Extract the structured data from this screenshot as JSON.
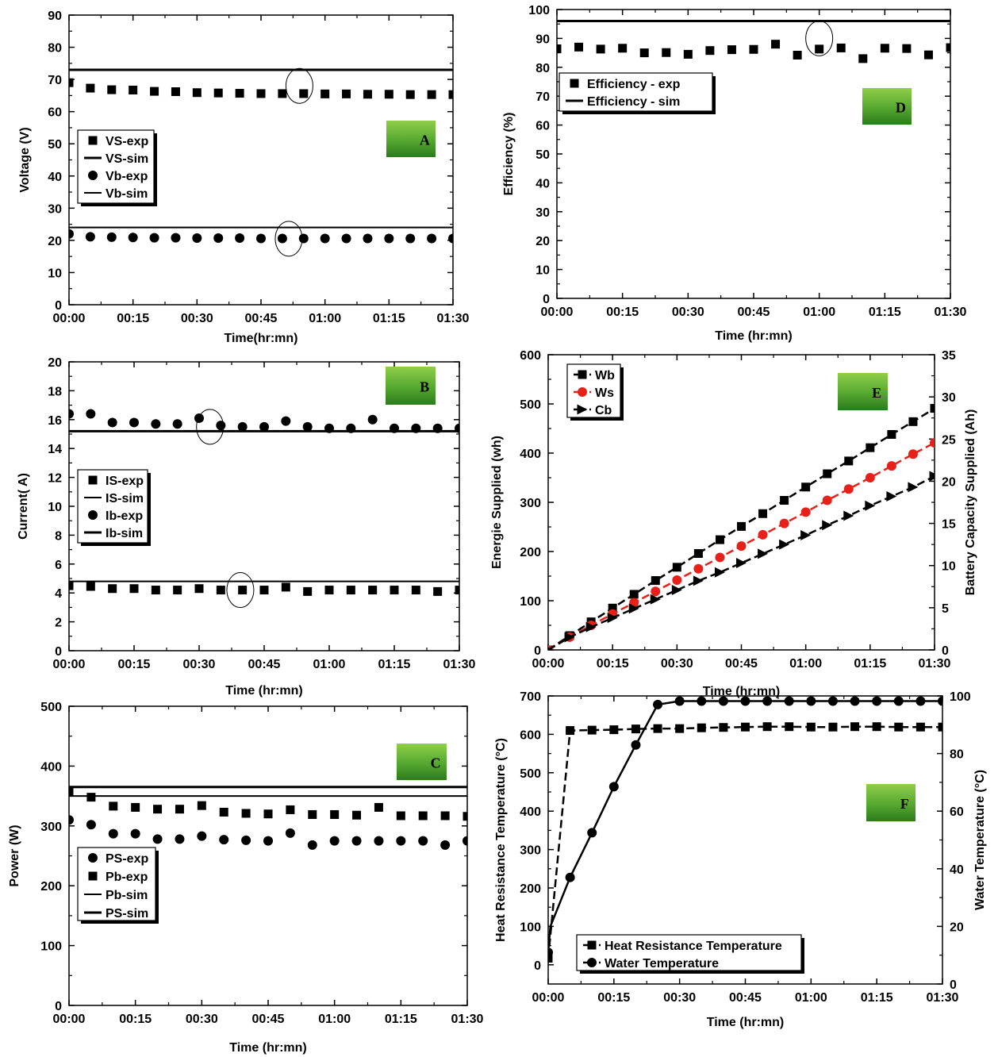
{
  "chart_data": [
    {
      "panel": "A",
      "type": "scatter",
      "xlabel": "Time(hr:mn)",
      "ylabel": "Voltage  (V)",
      "xlim": [
        0,
        90
      ],
      "ylim": [
        0,
        90
      ],
      "xticks": [
        0,
        15,
        30,
        45,
        60,
        75,
        90
      ],
      "xticklabels": [
        "00:00",
        "00:15",
        "00:30",
        "00:45",
        "01:00",
        "01:15",
        "01:30"
      ],
      "yticks": [
        0,
        10,
        20,
        30,
        40,
        50,
        60,
        70,
        80,
        90
      ],
      "legend_position": "center-left",
      "badge": "A",
      "series": [
        {
          "name": "VS-exp",
          "kind": "scatter",
          "marker": "square",
          "x": [
            0,
            5,
            10,
            15,
            20,
            25,
            30,
            35,
            40,
            45,
            50,
            55,
            60,
            65,
            70,
            75,
            80,
            85,
            90
          ],
          "values": [
            69,
            67.3,
            66.8,
            66.7,
            66.3,
            66.2,
            65.9,
            65.8,
            65.7,
            65.6,
            65.6,
            65.6,
            65.5,
            65.5,
            65.4,
            65.4,
            65.3,
            65.3,
            65.3
          ]
        },
        {
          "name": "VS-sim",
          "kind": "hline",
          "value": 73,
          "weight": "thick"
        },
        {
          "name": "Vb-exp",
          "kind": "scatter",
          "marker": "circle",
          "x": [
            0,
            5,
            10,
            15,
            20,
            25,
            30,
            35,
            40,
            45,
            50,
            55,
            60,
            65,
            70,
            75,
            80,
            85,
            90
          ],
          "values": [
            22,
            21.1,
            21,
            20.9,
            20.8,
            20.8,
            20.7,
            20.7,
            20.7,
            20.6,
            20.6,
            20.6,
            20.6,
            20.6,
            20.6,
            20.6,
            20.6,
            20.6,
            20.6
          ]
        },
        {
          "name": "Vb-sim",
          "kind": "hline",
          "value": 24,
          "weight": "thin"
        }
      ],
      "annotations": [
        {
          "shape": "ellipse",
          "x": 54,
          "y": 68
        },
        {
          "shape": "ellipse",
          "x": 51.5,
          "y": 20.5
        }
      ]
    },
    {
      "panel": "B",
      "type": "scatter",
      "xlabel": "Time (hr:mn)",
      "ylabel": "Current( A)",
      "xlim": [
        0,
        90
      ],
      "ylim": [
        0,
        20
      ],
      "xticks": [
        0,
        15,
        30,
        45,
        60,
        75,
        90
      ],
      "xticklabels": [
        "00:00",
        "00:15",
        "00:30",
        "00:45",
        "01:00",
        "01:15",
        "01:30"
      ],
      "yticks": [
        0,
        2,
        4,
        6,
        8,
        10,
        12,
        14,
        16,
        18,
        20
      ],
      "legend_position": "center-left",
      "badge": "B",
      "series": [
        {
          "name": "IS-exp",
          "kind": "scatter",
          "marker": "square",
          "x": [
            0,
            5,
            10,
            15,
            20,
            25,
            30,
            35,
            40,
            45,
            50,
            55,
            60,
            65,
            70,
            75,
            80,
            85,
            90
          ],
          "values": [
            4.5,
            4.45,
            4.3,
            4.3,
            4.2,
            4.2,
            4.3,
            4.2,
            4.2,
            4.2,
            4.4,
            4.1,
            4.2,
            4.2,
            4.2,
            4.2,
            4.2,
            4.1,
            4.2
          ]
        },
        {
          "name": "IS-sim",
          "kind": "hline",
          "value": 4.8,
          "weight": "thin"
        },
        {
          "name": "Ib-exp",
          "kind": "scatter",
          "marker": "circle",
          "x": [
            0,
            5,
            10,
            15,
            20,
            25,
            30,
            35,
            40,
            45,
            50,
            55,
            60,
            65,
            70,
            75,
            80,
            85,
            90
          ],
          "values": [
            16.4,
            16.4,
            15.8,
            15.8,
            15.7,
            15.7,
            16.1,
            15.6,
            15.5,
            15.5,
            15.9,
            15.5,
            15.4,
            15.4,
            16,
            15.4,
            15.4,
            15.4,
            15.4
          ]
        },
        {
          "name": "Ib-sim",
          "kind": "hline",
          "value": 15.2,
          "weight": "thick"
        }
      ],
      "annotations": [
        {
          "shape": "ellipse",
          "x": 32.5,
          "y": 15.5
        },
        {
          "shape": "ellipse",
          "x": 39.5,
          "y": 4.2
        }
      ]
    },
    {
      "panel": "C",
      "type": "scatter",
      "xlabel": "Time (hr:mn)",
      "ylabel": "Power (W)",
      "xlim": [
        0,
        90
      ],
      "ylim": [
        0,
        500
      ],
      "xticks": [
        0,
        15,
        30,
        45,
        60,
        75,
        90
      ],
      "xticklabels": [
        "00:00",
        "00:15",
        "00:30",
        "00:45",
        "01:00",
        "01:15",
        "01:30"
      ],
      "yticks": [
        0,
        100,
        200,
        300,
        400,
        500
      ],
      "legend_position": "center-left",
      "badge": "C",
      "series": [
        {
          "name": "PS-exp",
          "kind": "scatter",
          "marker": "circle",
          "x": [
            0,
            5,
            10,
            15,
            20,
            25,
            30,
            35,
            40,
            45,
            50,
            55,
            60,
            65,
            70,
            75,
            80,
            85,
            90
          ],
          "values": [
            310,
            302,
            287,
            287,
            278,
            278,
            283,
            277,
            276,
            275,
            288,
            268,
            275,
            275,
            275,
            275,
            275,
            268,
            275
          ]
        },
        {
          "name": "Pb-exp",
          "kind": "scatter",
          "marker": "square",
          "x": [
            0,
            5,
            10,
            15,
            20,
            25,
            30,
            35,
            40,
            45,
            50,
            55,
            60,
            65,
            70,
            75,
            80,
            85,
            90
          ],
          "values": [
            358,
            348,
            333,
            331,
            328,
            328,
            334,
            323,
            321,
            320,
            327,
            319,
            319,
            318,
            331,
            317,
            317,
            317,
            316
          ]
        },
        {
          "name": "Pb-sim",
          "kind": "hline",
          "value": 350,
          "weight": "thin"
        },
        {
          "name": "PS-sim",
          "kind": "hline",
          "value": 365,
          "weight": "thick"
        }
      ],
      "annotations": []
    },
    {
      "panel": "D",
      "type": "scatter",
      "xlabel": "Time (hr:mn)",
      "ylabel": "Efficiency (%)",
      "xlim": [
        0,
        90
      ],
      "ylim": [
        0,
        100
      ],
      "xticks": [
        0,
        15,
        30,
        45,
        60,
        75,
        90
      ],
      "xticklabels": [
        "00:00",
        "00:15",
        "00:30",
        "00:45",
        "01:00",
        "01:15",
        "01:30"
      ],
      "yticks": [
        0,
        10,
        20,
        30,
        40,
        50,
        60,
        70,
        80,
        90,
        100
      ],
      "legend_position": "top-left",
      "badge": "D",
      "series": [
        {
          "name": "Efficiency - exp",
          "kind": "scatter",
          "marker": "square",
          "x": [
            0,
            5,
            10,
            15,
            20,
            25,
            30,
            35,
            40,
            45,
            50,
            55,
            60,
            65,
            70,
            75,
            80,
            85,
            90
          ],
          "values": [
            86.4,
            87,
            86.3,
            86.6,
            85,
            85.1,
            84.5,
            85.8,
            86.1,
            86.2,
            88,
            84.2,
            86.3,
            86.7,
            83,
            86.6,
            86.5,
            84.3,
            86.8
          ]
        },
        {
          "name": "Efficiency - sim",
          "kind": "hline",
          "value": 96,
          "weight": "thick"
        }
      ],
      "annotations": [
        {
          "shape": "ellipse",
          "x": 60,
          "y": 90
        }
      ]
    },
    {
      "panel": "E",
      "type": "line",
      "xlabel": "Time (hr:mn)",
      "ylabel": "Energie Supplied (wh)",
      "y2label": "Battery Capacity Supplied (Ah)",
      "xlim": [
        0,
        90
      ],
      "ylim": [
        0,
        600
      ],
      "y2lim": [
        0,
        35
      ],
      "xticks": [
        0,
        15,
        30,
        45,
        60,
        75,
        90
      ],
      "xticklabels": [
        "00:00",
        "00:15",
        "00:30",
        "00:45",
        "01:00",
        "01:15",
        "01:30"
      ],
      "yticks": [
        0,
        100,
        200,
        300,
        400,
        500,
        600
      ],
      "y2ticks": [
        0,
        5,
        10,
        15,
        20,
        25,
        30,
        35
      ],
      "legend_position": "top-left",
      "badge": "E",
      "series": [
        {
          "name": "Wb",
          "kind": "line",
          "marker": "square",
          "color": "#000000",
          "axis": "left",
          "x": [
            0,
            5,
            10,
            15,
            20,
            25,
            30,
            35,
            40,
            45,
            50,
            55,
            60,
            65,
            70,
            75,
            80,
            85,
            90
          ],
          "values": [
            0,
            29,
            57,
            85,
            113,
            141,
            168,
            196,
            224,
            251,
            277,
            304,
            331,
            358,
            384,
            411,
            438,
            464,
            491
          ]
        },
        {
          "name": "Ws",
          "kind": "line",
          "marker": "circle",
          "color": "#e8201a",
          "axis": "left",
          "x": [
            0,
            5,
            10,
            15,
            20,
            25,
            30,
            35,
            40,
            45,
            50,
            55,
            60,
            65,
            70,
            75,
            80,
            85,
            90
          ],
          "values": [
            0,
            26,
            50,
            73,
            96,
            119,
            142,
            165,
            188,
            211,
            234,
            257,
            280,
            304,
            327,
            350,
            374,
            398,
            421
          ]
        },
        {
          "name": "Cb",
          "kind": "line",
          "marker": "triangle",
          "color": "#000000",
          "axis": "right",
          "x": [
            0,
            5,
            10,
            15,
            20,
            25,
            30,
            35,
            40,
            45,
            50,
            55,
            60,
            65,
            70,
            75,
            80,
            85,
            90
          ],
          "values": [
            0,
            1.5,
            2.7,
            3.8,
            4.9,
            6.0,
            7.1,
            8.2,
            9.2,
            10.3,
            11.4,
            12.5,
            13.6,
            14.8,
            15.9,
            17.1,
            18.2,
            19.3,
            20.6
          ]
        }
      ],
      "annotations": []
    },
    {
      "panel": "F",
      "type": "line",
      "xlabel": "Time (hr:mn)",
      "ylabel": "Heat Resistance Temperature (°C)",
      "y2label": "Water Temperature (°C)",
      "xlim": [
        0,
        90
      ],
      "ylim": [
        -50,
        700
      ],
      "y2lim": [
        0,
        100
      ],
      "xticks": [
        0,
        15,
        30,
        45,
        60,
        75,
        90
      ],
      "xticklabels": [
        "00:00",
        "00:15",
        "00:30",
        "00:45",
        "01:00",
        "01:15",
        "01:30"
      ],
      "yticks": [
        0,
        100,
        200,
        300,
        400,
        500,
        600,
        700
      ],
      "y2ticks": [
        0,
        20,
        40,
        60,
        80,
        100
      ],
      "legend_position": "bottom-center",
      "badge": "F",
      "series": [
        {
          "name": "Heat Resistance Temperature",
          "kind": "line",
          "marker": "square",
          "color": "#000000",
          "axis": "left",
          "x": [
            0,
            5,
            10,
            15,
            20,
            25,
            30,
            35,
            40,
            45,
            50,
            55,
            60,
            65,
            70,
            75,
            80,
            85,
            90
          ],
          "values": [
            17,
            610,
            611,
            612,
            614,
            615,
            615,
            617,
            618,
            619,
            620,
            620,
            619,
            619,
            620,
            620,
            619,
            619,
            619
          ]
        },
        {
          "name": "Water Temperature",
          "kind": "line",
          "marker": "circle",
          "color": "#000000",
          "axis": "right",
          "x": [
            0,
            0.5,
            5,
            10,
            15,
            20,
            25,
            30,
            35,
            40,
            45,
            50,
            55,
            60,
            65,
            70,
            75,
            80,
            85,
            90
          ],
          "values": [
            11,
            20,
            37,
            52.5,
            68.5,
            83,
            97,
            98.2,
            98.2,
            98.2,
            98.2,
            98.2,
            98.2,
            98.2,
            98.2,
            98.2,
            98.2,
            98.2,
            98.2,
            98.2
          ]
        }
      ],
      "annotations": []
    }
  ]
}
